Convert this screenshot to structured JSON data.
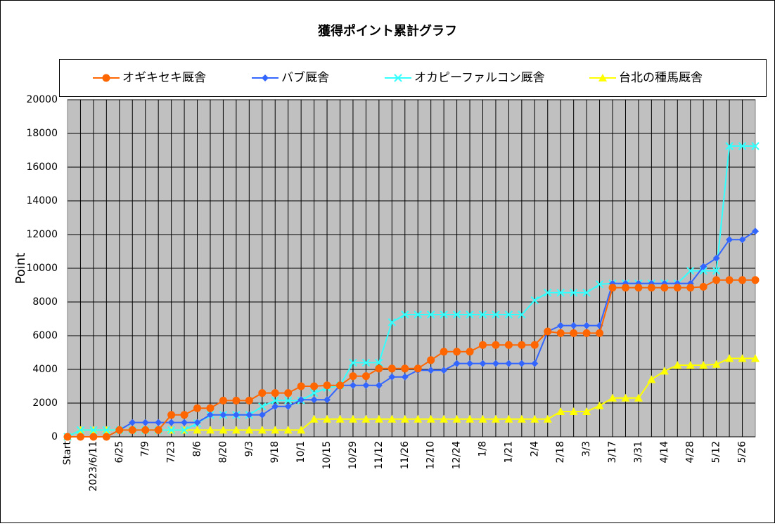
{
  "chart_data": {
    "type": "line",
    "title": "獲得ポイント累計グラフ",
    "y_label": "Point",
    "categories": [
      "Start",
      null,
      "2023/6/11",
      null,
      "6/25",
      null,
      "7/9",
      null,
      "7/23",
      null,
      "8/6",
      null,
      "8/20",
      null,
      "9/3",
      null,
      "9/18",
      null,
      "10/1",
      null,
      "10/15",
      null,
      "10/29",
      null,
      "11/12",
      null,
      "11/26",
      null,
      "12/10",
      null,
      "12/24",
      null,
      "1/8",
      null,
      "1/21",
      null,
      "2/4",
      null,
      "2/18",
      null,
      "3/3",
      null,
      "3/17",
      null,
      "3/31",
      null,
      "4/14",
      null,
      "4/28",
      null,
      "5/12",
      null,
      "5/26",
      null
    ],
    "series": [
      {
        "name": "オギキセキ厩舎",
        "color": "#ff6600",
        "marker": "circle",
        "values": [
          0,
          0,
          0,
          0,
          400,
          400,
          400,
          400,
          1300,
          1300,
          1700,
          1700,
          2150,
          2150,
          2150,
          2600,
          2600,
          2600,
          3000,
          3000,
          3050,
          3050,
          3600,
          3600,
          4050,
          4050,
          4050,
          4050,
          4550,
          5050,
          5050,
          5050,
          5450,
          5450,
          5450,
          5450,
          5450,
          6250,
          6150,
          6150,
          6150,
          6150,
          8850,
          8850,
          8850,
          8850,
          8850,
          8850,
          8850,
          8900,
          9300,
          9300,
          9300,
          9300
        ]
      },
      {
        "name": "バブ厩舎",
        "color": "#3366ff",
        "marker": "diamond",
        "values": [
          0,
          0,
          0,
          0,
          400,
          850,
          850,
          850,
          850,
          850,
          850,
          1300,
          1300,
          1300,
          1300,
          1300,
          1800,
          1800,
          2200,
          2200,
          2200,
          3050,
          3050,
          3050,
          3050,
          3550,
          3550,
          3950,
          3950,
          3950,
          4350,
          4350,
          4350,
          4350,
          4350,
          4350,
          4350,
          6250,
          6600,
          6600,
          6600,
          6600,
          9100,
          9100,
          9100,
          9100,
          9100,
          9100,
          9100,
          10100,
          10600,
          11700,
          11700,
          12200
        ]
      },
      {
        "name": "オカピーファルコン厩舎",
        "color": "#33ffff",
        "marker": "cross",
        "values": [
          0,
          400,
          400,
          400,
          400,
          400,
          400,
          400,
          400,
          400,
          800,
          1300,
          1300,
          1300,
          1300,
          1800,
          2150,
          2150,
          2150,
          2600,
          2900,
          3050,
          4400,
          4400,
          4400,
          6800,
          7250,
          7250,
          7250,
          7250,
          7250,
          7250,
          7250,
          7250,
          7250,
          7250,
          8100,
          8550,
          8550,
          8550,
          8550,
          9050,
          9100,
          9100,
          9100,
          9100,
          9100,
          9100,
          9850,
          9850,
          9850,
          17250,
          17250,
          17250
        ]
      },
      {
        "name": "台北の種馬厩舎",
        "color": "#ffff00",
        "marker": "triangle",
        "values": [
          0,
          400,
          400,
          400,
          400,
          400,
          400,
          400,
          400,
          400,
          400,
          400,
          400,
          400,
          400,
          400,
          400,
          400,
          400,
          1050,
          1050,
          1050,
          1050,
          1050,
          1050,
          1050,
          1050,
          1050,
          1050,
          1050,
          1050,
          1050,
          1050,
          1050,
          1050,
          1050,
          1050,
          1050,
          1500,
          1500,
          1500,
          1850,
          2300,
          2300,
          2300,
          3400,
          3900,
          4250,
          4250,
          4250,
          4300,
          4650,
          4650,
          4650
        ]
      }
    ],
    "ylim": [
      0,
      20000
    ],
    "yticks": [
      0,
      2000,
      4000,
      6000,
      8000,
      10000,
      12000,
      14000,
      16000,
      18000,
      20000
    ],
    "grid": true,
    "legend": "top"
  }
}
